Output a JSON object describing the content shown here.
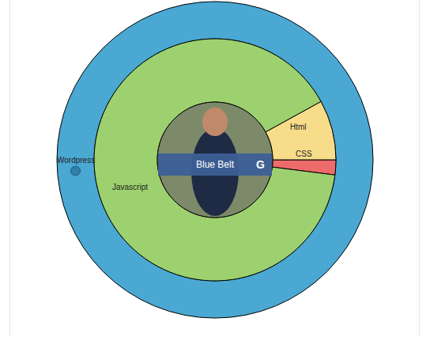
{
  "chart_data": {
    "type": "donut",
    "rings": [
      {
        "categories": [
          "Wordpress"
        ],
        "values": [
          100
        ],
        "colors": [
          "#4aa8d3"
        ]
      },
      {
        "categories": [
          "CSS",
          "Html",
          "Javascript"
        ],
        "values": [
          2,
          8,
          90
        ],
        "colors": [
          "#ee6b6b",
          "#f7dc8a",
          "#9dd16f"
        ]
      }
    ],
    "center": {
      "label": "Blue Belt",
      "badge": "G"
    }
  }
}
